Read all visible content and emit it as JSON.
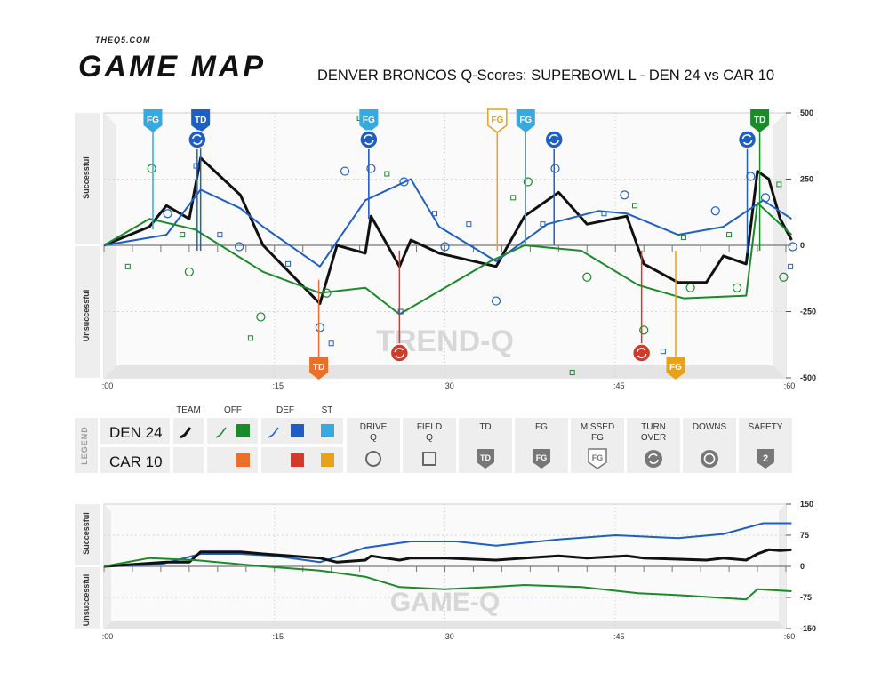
{
  "header": {
    "brand_small": "THEQ5.COM",
    "brand_big": "GAME MAP",
    "title": "DENVER BRONCOS Q-Scores: SUPERBOWL L - DEN 24 vs CAR 10"
  },
  "colors": {
    "team": "#111111",
    "off_den": "#1a8a2a",
    "def_den": "#1f5fc4",
    "st_den": "#35a9e0",
    "off_car": "#e8702a",
    "def_car": "#d23a2a",
    "st_car": "#e8a21a"
  },
  "chart_data": [
    {
      "type": "line",
      "name": "trend-q",
      "watermark": "TREND-Q",
      "ylabel_top": "Successful",
      "ylabel_bottom": "Unsuccessful",
      "ylim": [
        -500,
        500
      ],
      "yticks": [
        500,
        250,
        0,
        -250,
        -500
      ],
      "xlim": [
        0,
        60
      ],
      "xtick_labels": [
        ":00",
        ":15",
        ":30",
        ":45",
        ":60"
      ],
      "xticks": [
        0,
        15,
        30,
        45,
        60
      ],
      "series": [
        {
          "key": "team",
          "color": "#111111",
          "width": 3,
          "points": [
            [
              0,
              0
            ],
            [
              4,
              70
            ],
            [
              5.5,
              150
            ],
            [
              7.5,
              100
            ],
            [
              8.5,
              330
            ],
            [
              12,
              190
            ],
            [
              14,
              0
            ],
            [
              19,
              -220
            ],
            [
              20.5,
              0
            ],
            [
              23,
              -30
            ],
            [
              23.5,
              110
            ],
            [
              26,
              -80
            ],
            [
              27,
              20
            ],
            [
              29.5,
              -30
            ],
            [
              34.5,
              -80
            ],
            [
              37,
              110
            ],
            [
              40,
              200
            ],
            [
              42.5,
              80
            ],
            [
              46,
              110
            ],
            [
              47.5,
              -70
            ],
            [
              50.5,
              -140
            ],
            [
              53,
              -140
            ],
            [
              54.5,
              -40
            ],
            [
              56.5,
              -70
            ],
            [
              57.5,
              280
            ],
            [
              58.5,
              250
            ],
            [
              59.5,
              100
            ],
            [
              60.5,
              20
            ]
          ]
        },
        {
          "key": "def",
          "color": "#1f5fc4",
          "width": 2,
          "points": [
            [
              0,
              0
            ],
            [
              5.5,
              40
            ],
            [
              8.5,
              210
            ],
            [
              12,
              140
            ],
            [
              14,
              70
            ],
            [
              19,
              -80
            ],
            [
              23,
              170
            ],
            [
              27,
              250
            ],
            [
              29.5,
              70
            ],
            [
              34.5,
              -60
            ],
            [
              39,
              80
            ],
            [
              43.5,
              130
            ],
            [
              46,
              120
            ],
            [
              50.5,
              40
            ],
            [
              54.5,
              70
            ],
            [
              58,
              170
            ],
            [
              60.5,
              100
            ]
          ]
        },
        {
          "key": "off",
          "color": "#1a8a2a",
          "width": 2,
          "points": [
            [
              0,
              0
            ],
            [
              4,
              100
            ],
            [
              8,
              60
            ],
            [
              14,
              -100
            ],
            [
              19,
              -180
            ],
            [
              23,
              -160
            ],
            [
              26,
              -260
            ],
            [
              34,
              -60
            ],
            [
              37,
              0
            ],
            [
              42,
              -20
            ],
            [
              47,
              -150
            ],
            [
              51,
              -200
            ],
            [
              56.5,
              -190
            ],
            [
              57.5,
              160
            ],
            [
              60.5,
              40
            ]
          ]
        }
      ],
      "drive_markers": [
        {
          "x": 4.2,
          "y": 290,
          "t": "off"
        },
        {
          "x": 5.6,
          "y": 120,
          "t": "def"
        },
        {
          "x": 7.5,
          "y": -100,
          "t": "off"
        },
        {
          "x": 11.9,
          "y": -5,
          "t": "def"
        },
        {
          "x": 13.8,
          "y": -270,
          "t": "off"
        },
        {
          "x": 19.0,
          "y": -310,
          "t": "def"
        },
        {
          "x": 19.6,
          "y": -180,
          "t": "off"
        },
        {
          "x": 21.2,
          "y": 280,
          "t": "def"
        },
        {
          "x": 23.5,
          "y": 290,
          "t": "def"
        },
        {
          "x": 26.4,
          "y": 240,
          "t": "def"
        },
        {
          "x": 30.0,
          "y": -5,
          "t": "def"
        },
        {
          "x": 34.5,
          "y": -210,
          "t": "def"
        },
        {
          "x": 37.3,
          "y": 240,
          "t": "off"
        },
        {
          "x": 39.7,
          "y": 290,
          "t": "def"
        },
        {
          "x": 42.5,
          "y": -120,
          "t": "off"
        },
        {
          "x": 45.8,
          "y": 190,
          "t": "def"
        },
        {
          "x": 47.5,
          "y": -320,
          "t": "off"
        },
        {
          "x": 51.6,
          "y": -160,
          "t": "off"
        },
        {
          "x": 53.8,
          "y": 130,
          "t": "def"
        },
        {
          "x": 55.7,
          "y": -160,
          "t": "off"
        },
        {
          "x": 56.9,
          "y": 260,
          "t": "def"
        },
        {
          "x": 58.2,
          "y": 180,
          "t": "def"
        },
        {
          "x": 59.8,
          "y": -120,
          "t": "off"
        },
        {
          "x": 60.6,
          "y": -5,
          "t": "def"
        }
      ],
      "field_markers": [
        {
          "x": 2.1,
          "y": -80,
          "t": "off"
        },
        {
          "x": 6.9,
          "y": 40,
          "t": "off"
        },
        {
          "x": 8.1,
          "y": 300,
          "t": "def"
        },
        {
          "x": 10.2,
          "y": 40,
          "t": "def"
        },
        {
          "x": 12.9,
          "y": -350,
          "t": "off"
        },
        {
          "x": 16.2,
          "y": -70,
          "t": "def"
        },
        {
          "x": 20.0,
          "y": -370,
          "t": "def"
        },
        {
          "x": 22.5,
          "y": 480,
          "t": "off"
        },
        {
          "x": 24.9,
          "y": 270,
          "t": "off"
        },
        {
          "x": 26.1,
          "y": -250,
          "t": "def"
        },
        {
          "x": 29.1,
          "y": 120,
          "t": "def"
        },
        {
          "x": 32.1,
          "y": 80,
          "t": "def"
        },
        {
          "x": 36.0,
          "y": 180,
          "t": "off"
        },
        {
          "x": 38.6,
          "y": 80,
          "t": "def"
        },
        {
          "x": 41.2,
          "y": -480,
          "t": "off"
        },
        {
          "x": 44.0,
          "y": 120,
          "t": "def"
        },
        {
          "x": 46.7,
          "y": 150,
          "t": "off"
        },
        {
          "x": 49.2,
          "y": -400,
          "t": "def"
        },
        {
          "x": 51.0,
          "y": 30,
          "t": "off"
        },
        {
          "x": 55.0,
          "y": 40,
          "t": "off"
        },
        {
          "x": 59.4,
          "y": 230,
          "t": "off"
        },
        {
          "x": 60.4,
          "y": -80,
          "t": "def"
        }
      ],
      "events": [
        {
          "x": 4.3,
          "kind": "FG",
          "side": "top",
          "color": "#35a9e0",
          "y0": 60
        },
        {
          "x": 8.5,
          "kind": "TD",
          "side": "top",
          "color": "#1f5fc4",
          "y0": -20
        },
        {
          "x": 8.2,
          "kind": "TO",
          "side": "top",
          "color": "#1f5fc4",
          "y0": -20,
          "level": 1
        },
        {
          "x": 23.3,
          "kind": "FG",
          "side": "top",
          "color": "#35a9e0",
          "y0": 100
        },
        {
          "x": 23.3,
          "kind": "TO",
          "side": "top",
          "color": "#1f5fc4",
          "y0": 100,
          "level": 1
        },
        {
          "x": 34.6,
          "kind": "FG",
          "side": "top",
          "color": "#e8a21a",
          "y0": -20,
          "outline": true
        },
        {
          "x": 37.1,
          "kind": "FG",
          "side": "top",
          "color": "#35a9e0",
          "y0": 0
        },
        {
          "x": 39.6,
          "kind": "TO",
          "side": "top",
          "color": "#1f5fc4",
          "y0": 0,
          "level": 1
        },
        {
          "x": 56.6,
          "kind": "TO",
          "side": "top",
          "color": "#1f5fc4",
          "y0": -30,
          "level": 1
        },
        {
          "x": 57.7,
          "kind": "TD",
          "side": "top",
          "color": "#1a8a2a",
          "y0": -20
        },
        {
          "x": 18.9,
          "kind": "TD",
          "side": "bottom",
          "color": "#e8702a",
          "y0": -130
        },
        {
          "x": 26.0,
          "kind": "TO",
          "side": "bottom",
          "color": "#d23a2a",
          "y0": -20
        },
        {
          "x": 47.3,
          "kind": "TO",
          "side": "bottom",
          "color": "#d23a2a",
          "y0": -20
        },
        {
          "x": 50.3,
          "kind": "FG",
          "side": "bottom",
          "color": "#e8a21a",
          "y0": -20
        }
      ]
    },
    {
      "type": "line",
      "name": "game-q",
      "watermark": "GAME-Q",
      "ylabel_top": "Successful",
      "ylabel_bottom": "Unsuccessful",
      "ylim": [
        -150,
        150
      ],
      "yticks": [
        150,
        75,
        0,
        -75,
        -150
      ],
      "xlim": [
        0,
        60
      ],
      "xtick_labels": [
        ":00",
        ":15",
        ":30",
        ":45",
        ":60"
      ],
      "xticks": [
        0,
        15,
        30,
        45,
        60
      ],
      "series": [
        {
          "key": "def",
          "color": "#1f5fc4",
          "width": 2,
          "points": [
            [
              0,
              0
            ],
            [
              5,
              5
            ],
            [
              8.5,
              30
            ],
            [
              12,
              30
            ],
            [
              15,
              25
            ],
            [
              19,
              10
            ],
            [
              23,
              45
            ],
            [
              27,
              60
            ],
            [
              31,
              60
            ],
            [
              34.5,
              50
            ],
            [
              40,
              65
            ],
            [
              45,
              75
            ],
            [
              50.5,
              68
            ],
            [
              54.5,
              78
            ],
            [
              58,
              104
            ],
            [
              60.5,
              104
            ]
          ]
        },
        {
          "key": "team",
          "color": "#111111",
          "width": 3,
          "points": [
            [
              0,
              0
            ],
            [
              5.5,
              10
            ],
            [
              7.5,
              10
            ],
            [
              8.5,
              35
            ],
            [
              12,
              35
            ],
            [
              14,
              30
            ],
            [
              19,
              20
            ],
            [
              20.5,
              10
            ],
            [
              23,
              15
            ],
            [
              23.5,
              25
            ],
            [
              26,
              15
            ],
            [
              27,
              20
            ],
            [
              30,
              20
            ],
            [
              34.5,
              15
            ],
            [
              37,
              20
            ],
            [
              40,
              25
            ],
            [
              42.5,
              20
            ],
            [
              46,
              25
            ],
            [
              47.5,
              20
            ],
            [
              53,
              15
            ],
            [
              54.5,
              20
            ],
            [
              56.5,
              15
            ],
            [
              57.5,
              30
            ],
            [
              58.5,
              40
            ],
            [
              59.5,
              38
            ],
            [
              60.5,
              40
            ]
          ]
        },
        {
          "key": "off",
          "color": "#1a8a2a",
          "width": 2,
          "points": [
            [
              0,
              0
            ],
            [
              4,
              20
            ],
            [
              8,
              15
            ],
            [
              14,
              0
            ],
            [
              19,
              -10
            ],
            [
              23,
              -25
            ],
            [
              26,
              -50
            ],
            [
              30,
              -55
            ],
            [
              34,
              -50
            ],
            [
              37,
              -45
            ],
            [
              42,
              -50
            ],
            [
              47,
              -65
            ],
            [
              51,
              -70
            ],
            [
              56.5,
              -80
            ],
            [
              57.5,
              -55
            ],
            [
              60.5,
              -60
            ]
          ]
        }
      ]
    }
  ],
  "legend": {
    "label": "LEGEND",
    "col_team": "TEAM",
    "col_off": "OFF",
    "col_def": "DEF",
    "col_st": "ST",
    "row1": "DEN 24",
    "row2": "CAR 10",
    "items": [
      {
        "label1": "DRIVE",
        "label2": "Q",
        "icon": "circle-icon"
      },
      {
        "label1": "FIELD",
        "label2": "Q",
        "icon": "square-icon"
      },
      {
        "label1": "TD",
        "label2": "",
        "icon": "td-shield-icon",
        "badge": "TD"
      },
      {
        "label1": "FG",
        "label2": "",
        "icon": "fg-shield-icon",
        "badge": "FG"
      },
      {
        "label1": "MISSED",
        "label2": "FG",
        "icon": "missed-fg-icon",
        "badge": "FG"
      },
      {
        "label1": "TURN",
        "label2": "OVER",
        "icon": "turnover-icon"
      },
      {
        "label1": "DOWNS",
        "label2": "",
        "icon": "downs-icon"
      },
      {
        "label1": "SAFETY",
        "label2": "",
        "icon": "safety-icon",
        "badge": "2"
      }
    ]
  }
}
